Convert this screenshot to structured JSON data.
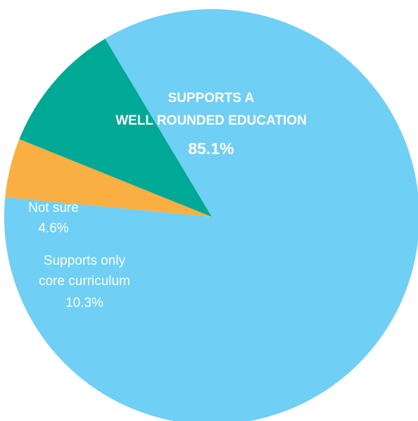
{
  "chart_data": {
    "type": "pie",
    "slices": [
      {
        "name_lines": [
          "SUPPORTS A",
          "WELL ROUNDED EDUCATION"
        ],
        "value_label": "85.1%",
        "value": 85.1,
        "color": "#6fcff5"
      },
      {
        "name_lines": [
          "Supports only",
          "core curriculum"
        ],
        "value_label": "10.3%",
        "value": 10.3,
        "color": "#00a995"
      },
      {
        "name_lines": [
          "Not sure"
        ],
        "value_label": "4.6%",
        "value": 4.6,
        "color": "#f9af41"
      }
    ],
    "legend": "none",
    "start_angle_deg_clockwise_from_east": 180
  }
}
